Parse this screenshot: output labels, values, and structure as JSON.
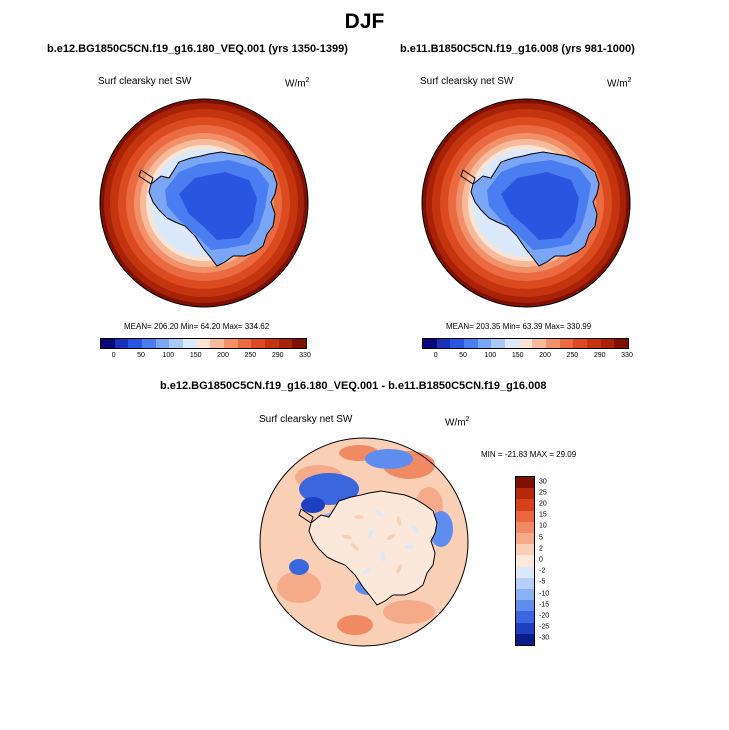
{
  "title": "DJF",
  "panels": [
    {
      "case": "b.e12.BG1850C5CN.f19_g16.180_VEQ.001 (yrs 1350-1399)",
      "variable": "Surf clearsky net SW",
      "units_base": "W/m",
      "units_exp": "2",
      "stats": "MEAN= 206.20  Min=  64.20  Max= 334.62",
      "colorbar_labels": [
        "0",
        "50",
        "100",
        "150",
        "200",
        "250",
        "290",
        "330"
      ]
    },
    {
      "case": "b.e11.B1850C5CN.f19_g16.008 (yrs 981-1000)",
      "variable": "Surf clearsky net SW",
      "units_base": "W/m",
      "units_exp": "2",
      "stats": "MEAN= 203.35  Min=  63.39  Max= 330.99",
      "colorbar_labels": [
        "0",
        "50",
        "100",
        "150",
        "200",
        "250",
        "290",
        "330"
      ]
    }
  ],
  "difference": {
    "title": "b.e12.BG1850C5CN.f19_g16.180_VEQ.001 - b.e11.B1850C5CN.f19_g16.008",
    "variable": "Surf clearsky net SW",
    "units_base": "W/m",
    "units_exp": "2",
    "stats": "MIN = -21.83 MAX =  29.09",
    "colorbar_labels": [
      "30",
      "25",
      "20",
      "15",
      "10",
      "5",
      "2",
      "0",
      "-2",
      "-5",
      "-10",
      "-15",
      "-20",
      "-25",
      "-30"
    ]
  },
  "colors": {
    "abs_scale": [
      "#08087a",
      "#1a2fb8",
      "#2a55e0",
      "#4a7ef0",
      "#7aa6f5",
      "#a8c8f8",
      "#dbe9fb",
      "#fbe4d4",
      "#f7bb9b",
      "#f2906a",
      "#ea6a42",
      "#dc4a20",
      "#c4340f",
      "#a82207",
      "#7e1004"
    ],
    "diff_scale": [
      "#7e1004",
      "#b42a0a",
      "#d6421a",
      "#e9663e",
      "#f08a64",
      "#f5ab8a",
      "#f9cfb6",
      "#fbe8db",
      "#dce9fa",
      "#b6d0f7",
      "#8ab1f3",
      "#5f8ded",
      "#3a67de",
      "#1e3fbf",
      "#0a1c8a"
    ],
    "coast": "#000000"
  }
}
